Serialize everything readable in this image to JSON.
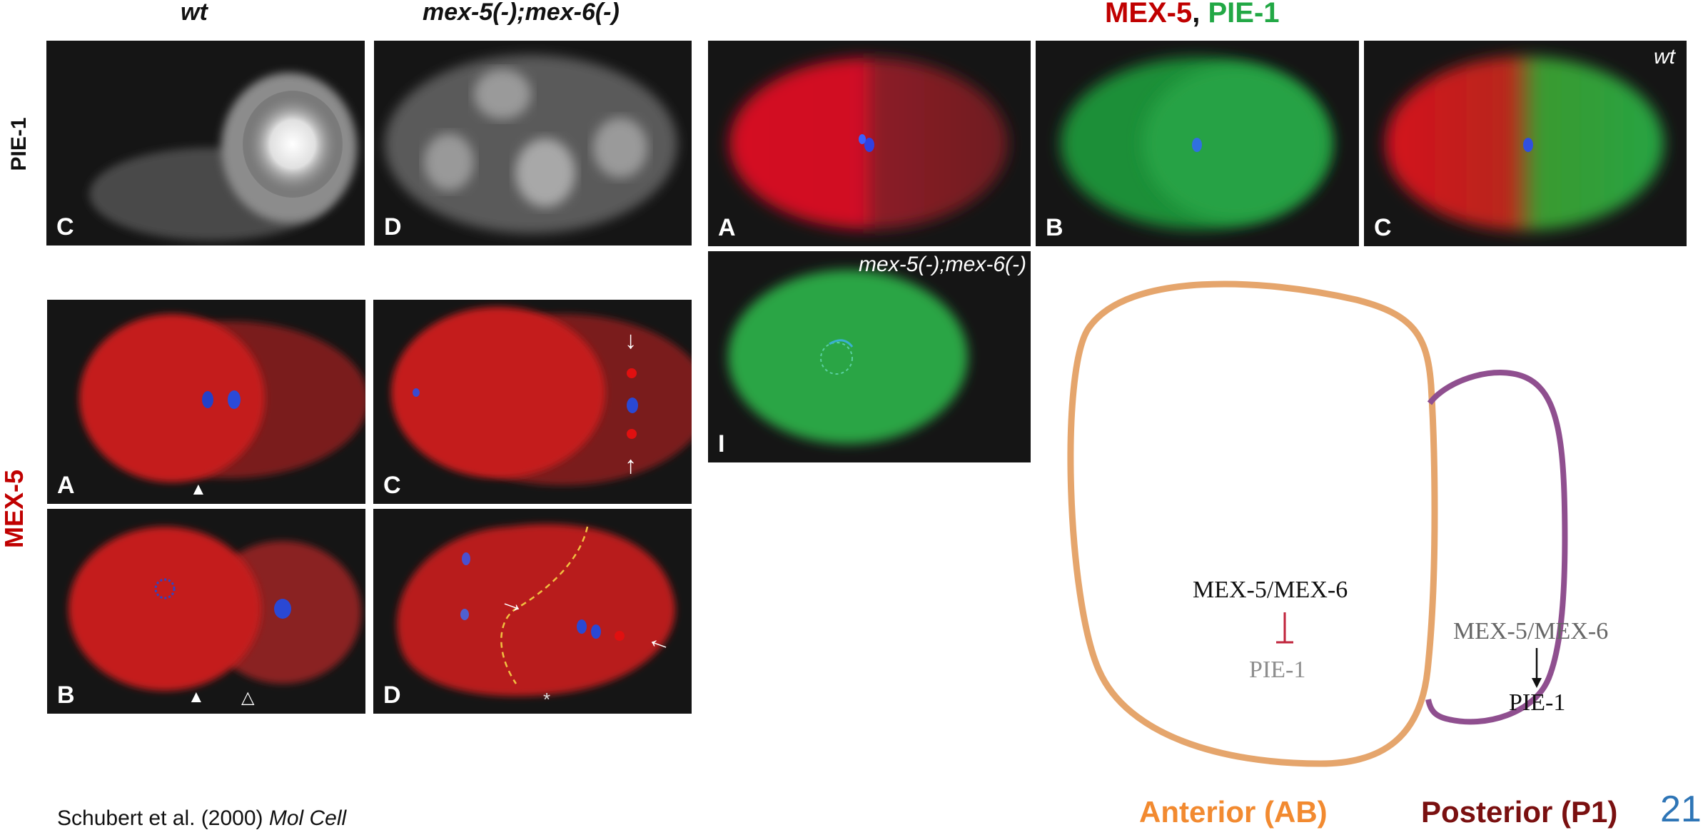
{
  "left_figure": {
    "col_titles": [
      "wt",
      "mex-5(-);mex-6(-)"
    ],
    "row_labels": {
      "top": "PIE-1",
      "bottom": "MEX-5"
    },
    "pie1_panels": [
      "C",
      "D"
    ],
    "mex5_panels": [
      "A",
      "C",
      "B",
      "D"
    ],
    "markers": {
      "arrowhead": "▲",
      "open_arrowhead": "△",
      "star": "*"
    }
  },
  "right_figure": {
    "title_part1": "MEX-5",
    "title_sep": ", ",
    "title_part2": "PIE-1",
    "panels": [
      "A",
      "B",
      "C"
    ],
    "panel_c_tag": "wt",
    "mutant_panel_label": "I",
    "mutant_panel_tag": "mex-5(-);mex-6(-)"
  },
  "diagram": {
    "anterior_protein": "MEX-5/MEX-6",
    "anterior_target": "PIE-1",
    "posterior_protein": "MEX-5/MEX-6",
    "posterior_target": "PIE-1",
    "anterior_label": "Anterior (AB)",
    "posterior_label": "Posterior (P1)",
    "colors": {
      "anterior_cell": "#e5a56c",
      "posterior_cell": "#8f4f8f",
      "inhibit": "#c0243c",
      "anterior_text": "#f28a30",
      "posterior_text": "#7a1010"
    }
  },
  "citation": {
    "authors": "Schubert et al. (2000) ",
    "journal": "Mol Cell"
  },
  "slide_number": "21",
  "colors": {
    "mex5_red": "#c00000",
    "pie1_green": "#22a845",
    "slide_number": "#2e75b6"
  }
}
